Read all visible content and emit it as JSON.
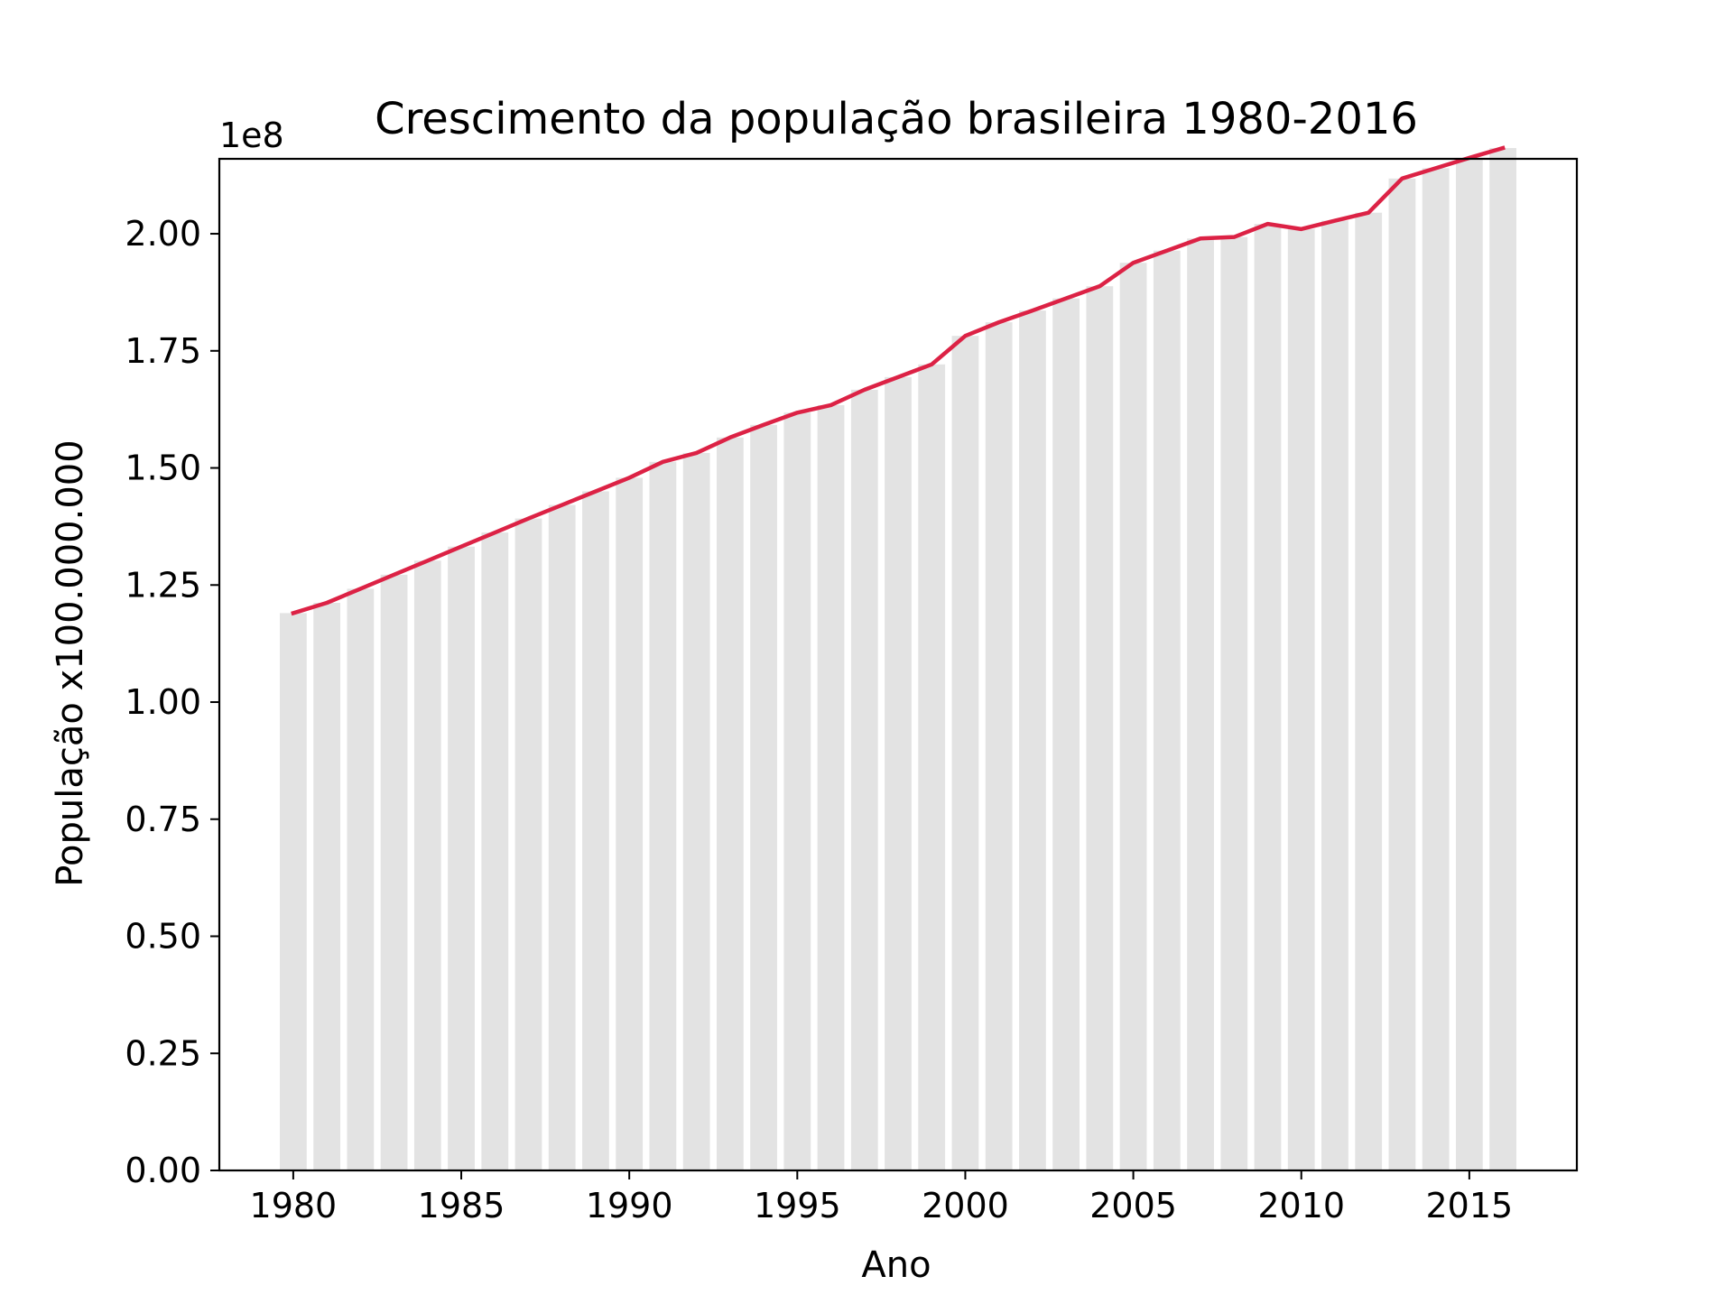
{
  "chart_data": {
    "type": "bar",
    "title": "Crescimento da população brasileira 1980-2016",
    "xlabel": "Ano",
    "ylabel": "População x100.000.000",
    "y_offset_label": "1e8",
    "x": [
      1980,
      1981,
      1982,
      1983,
      1984,
      1985,
      1986,
      1987,
      1988,
      1989,
      1990,
      1991,
      1992,
      1993,
      1994,
      1995,
      1996,
      1997,
      1998,
      1999,
      2000,
      2001,
      2002,
      2003,
      2004,
      2005,
      2006,
      2007,
      2008,
      2009,
      2010,
      2011,
      2012,
      2013,
      2014,
      2015,
      2016
    ],
    "series": [
      {
        "type": "bar",
        "values": [
          119000000,
          121200000,
          124200000,
          127200000,
          130200000,
          133200000,
          136200000,
          139200000,
          142100000,
          145000000,
          147900000,
          151300000,
          153200000,
          156500000,
          159200000,
          161800000,
          163400000,
          166700000,
          169400000,
          172100000,
          178200000,
          181100000,
          183600000,
          186200000,
          188800000,
          193800000,
          196400000,
          199000000,
          199300000,
          202100000,
          201000000,
          202800000,
          204500000,
          211800000,
          214000000,
          216200000,
          218300000
        ],
        "color": "#e3e3e3"
      },
      {
        "type": "line",
        "values": [
          119000000,
          121200000,
          124200000,
          127200000,
          130200000,
          133200000,
          136200000,
          139200000,
          142100000,
          145000000,
          147900000,
          151300000,
          153200000,
          156500000,
          159200000,
          161800000,
          163400000,
          166700000,
          169400000,
          172100000,
          178200000,
          181100000,
          183600000,
          186200000,
          188800000,
          193800000,
          196400000,
          199000000,
          199300000,
          202100000,
          201000000,
          202800000,
          204500000,
          211800000,
          214000000,
          216200000,
          218300000
        ],
        "color": "#dc2245"
      }
    ],
    "xticks": [
      1980,
      1985,
      1990,
      1995,
      2000,
      2005,
      2010,
      2015
    ],
    "xtick_labels": [
      "1980",
      "1985",
      "1990",
      "1995",
      "2000",
      "2005",
      "2010",
      "2015"
    ],
    "yticks": [
      0,
      25000000,
      50000000,
      75000000,
      100000000,
      125000000,
      150000000,
      175000000,
      200000000
    ],
    "ytick_labels": [
      "0.00",
      "0.25",
      "0.50",
      "0.75",
      "1.00",
      "1.25",
      "1.50",
      "1.75",
      "2.00"
    ],
    "xlim": [
      1977.8,
      2018.2
    ],
    "ylim": [
      0,
      216000000
    ],
    "grid": false,
    "legend": "none"
  }
}
